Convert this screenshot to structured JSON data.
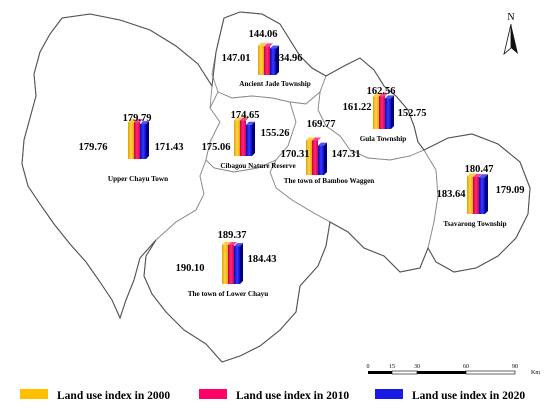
{
  "legend": [
    {
      "label": "Land use index in 2000",
      "color": "#FFC000"
    },
    {
      "label": "Land use index in 2010",
      "color": "#FF0066"
    },
    {
      "label": "Land use index in 2020",
      "color": "#1A1AE6"
    }
  ],
  "north_label": "N",
  "scale": {
    "ticks": [
      "0",
      "15",
      "30",
      "60",
      "90"
    ],
    "unit": "Km"
  },
  "regions": [
    {
      "name": "Upper Chayu Town",
      "values": {
        "2000": "179.76",
        "2010": "179.79",
        "2020": "171.43"
      }
    },
    {
      "name": "Ancient Jade Township",
      "values": {
        "2000": "147.01",
        "2010": "144.06",
        "2020": "134.96"
      }
    },
    {
      "name": "Cibagou Nature Reserve",
      "values": {
        "2000": "175.06",
        "2010": "174.65",
        "2020": "155.26"
      }
    },
    {
      "name": "The town of Bamboo Waggen",
      "values": {
        "2000": "170.31",
        "2010": "169.77",
        "2020": "147.31"
      }
    },
    {
      "name": "Gula Township",
      "values": {
        "2000": "161.22",
        "2010": "162.56",
        "2020": "152.75"
      }
    },
    {
      "name": "Tsavarong Township",
      "values": {
        "2000": "183.64",
        "2010": "180.47",
        "2020": "179.09"
      }
    },
    {
      "name": "The town of Lower Chayu",
      "values": {
        "2000": "190.10",
        "2010": "189.37",
        "2020": "184.43"
      }
    }
  ]
}
